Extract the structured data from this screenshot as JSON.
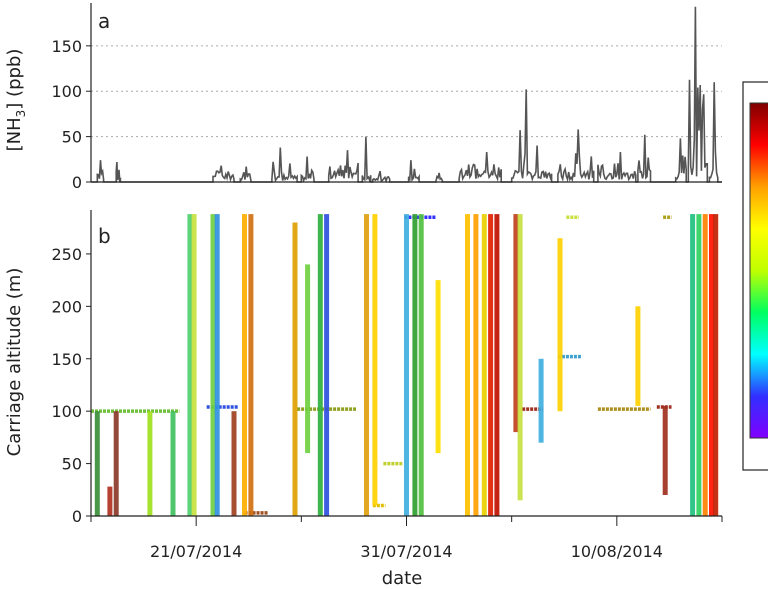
{
  "chart_data": [
    {
      "panel_label": "a",
      "type": "line",
      "ylabel": "[NH3] (ppb)",
      "ylabel_main": "[NH",
      "ylabel_sub": "3",
      "ylabel_tail": "] (ppb)",
      "xlim": [
        "2014-07-16",
        "2014-08-15"
      ],
      "ylim": [
        0,
        195
      ],
      "yticks": [
        0,
        50,
        100,
        150
      ],
      "grid": "horizontal dotted",
      "color": "#555555",
      "bursts": [
        {
          "start": "2014-07-16.3",
          "end": "2014-07-16.6",
          "peak": 24,
          "base": 4
        },
        {
          "start": "2014-07-17.2",
          "end": "2014-07-17.4",
          "peak": 22,
          "base": 3
        },
        {
          "start": "2014-07-21.8",
          "end": "2014-07-22.8",
          "peak": 18,
          "base": 8
        },
        {
          "start": "2014-07-23.1",
          "end": "2014-07-23.6",
          "peak": 17,
          "base": 6
        },
        {
          "start": "2014-07-24.6",
          "end": "2014-07-25.8",
          "peak": 38,
          "base": 5
        },
        {
          "start": "2014-07-26.0",
          "end": "2014-07-26.6",
          "peak": 28,
          "base": 5
        },
        {
          "start": "2014-07-27.3",
          "end": "2014-07-28.7",
          "peak": 35,
          "base": 8
        },
        {
          "start": "2014-07-28.9",
          "end": "2014-07-29.3",
          "peak": 50,
          "base": 6
        },
        {
          "start": "2014-07-29.4",
          "end": "2014-07-30.2",
          "peak": 12,
          "base": 3
        },
        {
          "start": "2014-07-31.1",
          "end": "2014-07-31.6",
          "peak": 24,
          "base": 4
        },
        {
          "start": "2014-08-01.4",
          "end": "2014-08-01.7",
          "peak": 10,
          "base": 2
        },
        {
          "start": "2014-08-02.5",
          "end": "2014-08-04.5",
          "peak": 33,
          "base": 10
        },
        {
          "start": "2014-08-05.0",
          "end": "2014-08-06.9",
          "peak": 102,
          "base": 8
        },
        {
          "start": "2014-08-07.2",
          "end": "2014-08-08.9",
          "peak": 58,
          "base": 8
        },
        {
          "start": "2014-08-09.1",
          "end": "2014-08-10.9",
          "peak": 33,
          "base": 8
        },
        {
          "start": "2014-08-11.0",
          "end": "2014-08-11.6",
          "peak": 52,
          "base": 10
        },
        {
          "start": "2014-08-12.8",
          "end": "2014-08-13.3",
          "peak": 48,
          "base": 8
        },
        {
          "start": "2014-08-13.4",
          "end": "2014-08-14.3",
          "peak": 193,
          "base": 15
        },
        {
          "start": "2014-08-14.4",
          "end": "2014-08-14.8",
          "peak": 110,
          "base": 10
        }
      ],
      "y_values_approx": "peak NH3 concentrations estimated from gridlines"
    },
    {
      "panel_label": "b",
      "type": "scatter",
      "xlabel": "date",
      "ylabel": "Carriage altitude (m)",
      "xlim": [
        "2014-07-16",
        "2014-08-15"
      ],
      "ylim": [
        0,
        290
      ],
      "yticks": [
        0,
        50,
        100,
        150,
        200,
        250
      ],
      "xticks": [
        "21/07/2014",
        "31/07/2014",
        "10/08/2014"
      ],
      "xtick_dates": [
        "2014-07-21",
        "2014-07-31",
        "2014-08-10"
      ],
      "minor_xtick_dates": [
        "2014-07-16",
        "2014-07-26",
        "2014-08-05",
        "2014-08-15"
      ],
      "color_scale": "rainbow, purple (low [NH3]) to dark red (high [NH3])",
      "colorbar_colors": [
        "#8000ff",
        "#3030ff",
        "#00ffff",
        "#00ff60",
        "#c0ff00",
        "#ffff00",
        "#ffa000",
        "#ff0000",
        "#800000"
      ],
      "vertical_profiles": [
        {
          "date": "2014-07-16.3",
          "alt": [
            0,
            100
          ],
          "color": "#3a8f3a"
        },
        {
          "date": "2014-07-16.9",
          "alt": [
            0,
            28
          ],
          "color": "#b03020"
        },
        {
          "date": "2014-07-17.2",
          "alt": [
            0,
            100
          ],
          "color": "#8b3a2a"
        },
        {
          "date": "2014-07-18.8",
          "alt": [
            0,
            100
          ],
          "color": "#a0e020"
        },
        {
          "date": "2014-07-19.9",
          "alt": [
            0,
            100
          ],
          "color": "#40c060"
        },
        {
          "date": "2014-07-20.7",
          "alt": [
            0,
            288
          ],
          "color": "#50d070"
        },
        {
          "date": "2014-07-20.9",
          "alt": [
            0,
            288
          ],
          "color": "#c8e040"
        },
        {
          "date": "2014-07-21.8",
          "alt": [
            0,
            288
          ],
          "color": "#70d040"
        },
        {
          "date": "2014-07-22.0",
          "alt": [
            0,
            288
          ],
          "color": "#3090e0"
        },
        {
          "date": "2014-07-22.8",
          "alt": [
            0,
            100
          ],
          "color": "#a04020"
        },
        {
          "date": "2014-07-23.3",
          "alt": [
            0,
            288
          ],
          "color": "#ffb000"
        },
        {
          "date": "2014-07-23.6",
          "alt": [
            0,
            288
          ],
          "color": "#d07010"
        },
        {
          "date": "2014-07-25.7",
          "alt": [
            0,
            280
          ],
          "color": "#e0a000"
        },
        {
          "date": "2014-07-26.3",
          "alt": [
            60,
            240
          ],
          "color": "#70d040"
        },
        {
          "date": "2014-07-26.9",
          "alt": [
            0,
            288
          ],
          "color": "#30b040"
        },
        {
          "date": "2014-07-27.2",
          "alt": [
            0,
            288
          ],
          "color": "#3050e0"
        },
        {
          "date": "2014-07-29.1",
          "alt": [
            0,
            288
          ],
          "color": "#e0a010"
        },
        {
          "date": "2014-07-29.5",
          "alt": [
            10,
            288
          ],
          "color": "#ffd000"
        },
        {
          "date": "2014-07-31.0",
          "alt": [
            0,
            288
          ],
          "color": "#40b0e0"
        },
        {
          "date": "2014-07-31.4",
          "alt": [
            0,
            288
          ],
          "color": "#30a030"
        },
        {
          "date": "2014-07-31.7",
          "alt": [
            0,
            288
          ],
          "color": "#50c040"
        },
        {
          "date": "2014-08-01.5",
          "alt": [
            60,
            225
          ],
          "color": "#ffe000"
        },
        {
          "date": "2014-08-02.9",
          "alt": [
            0,
            288
          ],
          "color": "#ffc000"
        },
        {
          "date": "2014-08-03.3",
          "alt": [
            0,
            288
          ],
          "color": "#ffa000"
        },
        {
          "date": "2014-08-03.7",
          "alt": [
            0,
            288
          ],
          "color": "#e8d000"
        },
        {
          "date": "2014-08-04.0",
          "alt": [
            0,
            288
          ],
          "color": "#e02000"
        },
        {
          "date": "2014-08-04.3",
          "alt": [
            0,
            288
          ],
          "color": "#c01000"
        },
        {
          "date": "2014-08-05.2",
          "alt": [
            80,
            288
          ],
          "color": "#c04020"
        },
        {
          "date": "2014-08-05.4",
          "alt": [
            15,
            288
          ],
          "color": "#c8e040"
        },
        {
          "date": "2014-08-06.4",
          "alt": [
            70,
            150
          ],
          "color": "#40b0e0"
        },
        {
          "date": "2014-08-07.3",
          "alt": [
            100,
            265
          ],
          "color": "#ffd000"
        },
        {
          "date": "2014-08-11.0",
          "alt": [
            105,
            200
          ],
          "color": "#ffd000"
        },
        {
          "date": "2014-08-12.3",
          "alt": [
            20,
            105
          ],
          "color": "#a03020"
        },
        {
          "date": "2014-08-13.6",
          "alt": [
            0,
            288
          ],
          "color": "#20c080"
        },
        {
          "date": "2014-08-13.9",
          "alt": [
            0,
            288
          ],
          "color": "#30d060"
        },
        {
          "date": "2014-08-14.2",
          "alt": [
            0,
            288
          ],
          "color": "#ff8000"
        },
        {
          "date": "2014-08-14.5",
          "alt": [
            0,
            288
          ],
          "color": "#ff1000"
        },
        {
          "date": "2014-08-14.7",
          "alt": [
            0,
            288
          ],
          "color": "#c02000"
        }
      ],
      "horizontal_segments": [
        {
          "start": "2014-07-16.0",
          "end": "2014-07-20.2",
          "alt": 100,
          "color": "#70c040"
        },
        {
          "start": "2014-07-21.5",
          "end": "2014-07-23.0",
          "alt": 104,
          "color": "#3050e0"
        },
        {
          "start": "2014-07-23.3",
          "end": "2014-07-24.4",
          "alt": 3,
          "color": "#a05020"
        },
        {
          "start": "2014-07-25.8",
          "end": "2014-07-28.6",
          "alt": 102,
          "color": "#90a020"
        },
        {
          "start": "2014-07-29.4",
          "end": "2014-07-30.0",
          "alt": 10,
          "color": "#e0c000"
        },
        {
          "start": "2014-07-29.9",
          "end": "2014-07-30.8",
          "alt": 50,
          "color": "#c0d030"
        },
        {
          "start": "2014-07-30.9",
          "end": "2014-08-01.4",
          "alt": 285,
          "color": "#3030ff"
        },
        {
          "start": "2014-08-05.5",
          "end": "2014-08-06.5",
          "alt": 102,
          "color": "#a03020"
        },
        {
          "start": "2014-08-07.6",
          "end": "2014-08-08.2",
          "alt": 285,
          "color": "#c8e040"
        },
        {
          "start": "2014-08-07.2",
          "end": "2014-08-08.3",
          "alt": 152,
          "color": "#40a0d0"
        },
        {
          "start": "2014-08-09.1",
          "end": "2014-08-11.6",
          "alt": 102,
          "color": "#b09020"
        },
        {
          "start": "2014-08-11.9",
          "end": "2014-08-12.6",
          "alt": 104,
          "color": "#a03020"
        },
        {
          "start": "2014-08-12.2",
          "end": "2014-08-12.6",
          "alt": 285,
          "color": "#b0a020"
        }
      ]
    }
  ]
}
